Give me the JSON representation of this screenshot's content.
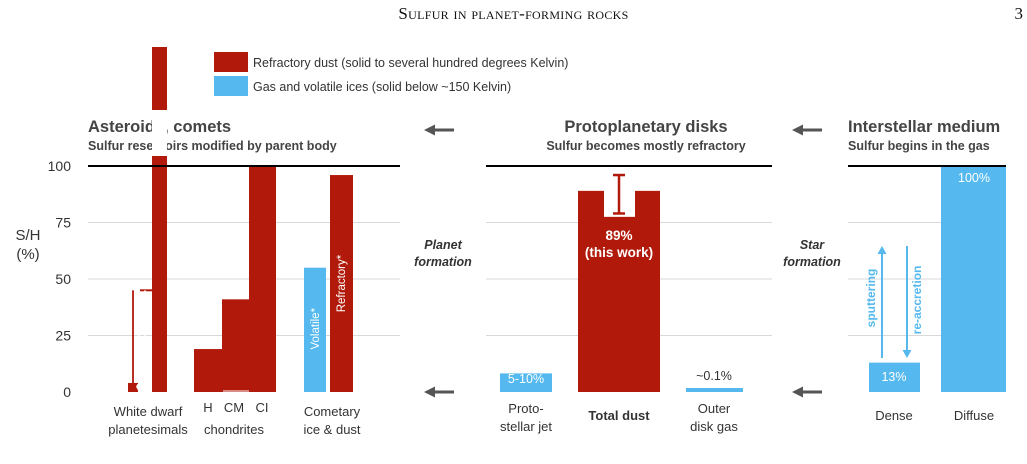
{
  "header": {
    "running_title": "Sulfur in planet-forming rocks",
    "page_number": "3"
  },
  "legend": [
    {
      "label": "Refractory dust (solid to several hundred degrees Kelvin)",
      "color": "#b11a0b"
    },
    {
      "label": "Gas and volatile ices (solid below ~150 Kelvin)",
      "color": "#55b9ef"
    }
  ],
  "colors": {
    "refractory": "#b11a0b",
    "volatile": "#55b9ef",
    "arrow": "#555555",
    "text": "#333333"
  },
  "axis": {
    "label_line1": "S/H",
    "label_line2": "(%)",
    "ticks": [
      0,
      25,
      50,
      75,
      100
    ],
    "ylim": [
      0,
      100
    ]
  },
  "flow": {
    "planet_line1": "Planet",
    "planet_line2": "formation",
    "star_line1": "Star",
    "star_line2": "formation"
  },
  "chart_data": [
    {
      "type": "bar",
      "title": "Asteroids, comets",
      "subtitle": "Sulfur reservoirs modified by parent body",
      "ylabel": "S/H (%)",
      "ylim": [
        0,
        100
      ],
      "categories": [
        {
          "label_lines": [
            "White dwarf",
            "planetesimals"
          ]
        },
        {
          "label_lines": [
            "chondrites"
          ],
          "sublabels": [
            "H",
            "CM",
            "CI"
          ]
        },
        {
          "label_lines": [
            "Cometary",
            "ice & dust"
          ]
        }
      ],
      "bars": [
        {
          "group": 0,
          "kind": "refractory",
          "value": 4
        },
        {
          "group": 0,
          "kind": "refractory",
          "value": 100,
          "extends_to": 151
        },
        {
          "group": 1,
          "kind": "refractory",
          "sub": 0,
          "value": 19
        },
        {
          "group": 1,
          "kind": "refractory",
          "sub": 1,
          "value": 41
        },
        {
          "group": 1,
          "kind": "refractory",
          "sub": 2,
          "value": 100
        },
        {
          "group": 2,
          "kind": "volatile",
          "value": 55,
          "label": "Volatile*"
        },
        {
          "group": 2,
          "kind": "refractory",
          "value": 96,
          "label": "Refractory*"
        }
      ],
      "white_dwarf_range": [
        0,
        45
      ]
    },
    {
      "type": "bar",
      "title": "Protoplanetary disks",
      "subtitle": "Sulfur becomes mostly refractory",
      "ylim": [
        0,
        100
      ],
      "categories": [
        {
          "label_lines": [
            "Proto-",
            "stellar jet"
          ],
          "kind": "volatile",
          "value_range": [
            5,
            10
          ],
          "value_label": "5-10%"
        },
        {
          "label_lines": [
            "Total dust"
          ],
          "kind": "refractory",
          "value": 89,
          "error": [
            79,
            96
          ],
          "value_label": "89%",
          "value_label2": "(this work)"
        },
        {
          "label_lines": [
            "Outer",
            "disk gas"
          ],
          "kind": "volatile",
          "value": 0.1,
          "value_label": "~0.1%"
        }
      ]
    },
    {
      "type": "bar",
      "title": "Interstellar medium",
      "subtitle": "Sulfur begins in the gas",
      "ylim": [
        0,
        100
      ],
      "categories": [
        {
          "label_lines": [
            "Dense"
          ],
          "kind": "volatile",
          "value": 13,
          "value_label": "13%"
        },
        {
          "label_lines": [
            "Diffuse"
          ],
          "kind": "volatile",
          "value": 100,
          "value_label": "100%"
        }
      ],
      "process_labels": {
        "up": "sputtering",
        "down": "re-accretion"
      }
    }
  ]
}
